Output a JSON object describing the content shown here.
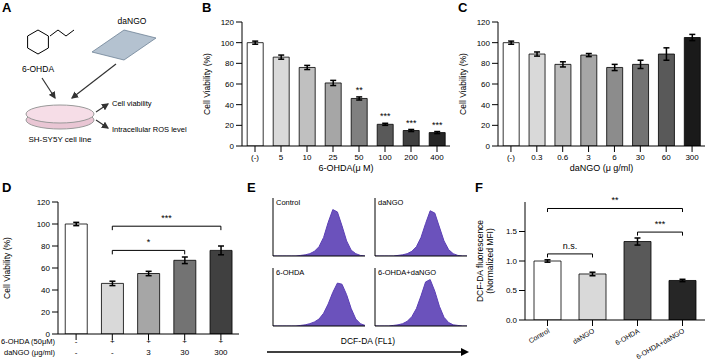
{
  "diagram": {
    "panel": "A",
    "inputs": [
      "6-OHDA",
      "daNGO"
    ],
    "cells": "SH-SY5Y cell line",
    "outputs": [
      "Cell viability",
      "Intracellular ROS level"
    ]
  },
  "chart_data": [
    {
      "panel": "B",
      "type": "bar",
      "ylabel": "Cell Viability (%)",
      "xlabel": "6-OHDA(μ M)",
      "categories": [
        "(-)",
        "5",
        "10",
        "25",
        "50",
        "100",
        "200",
        "400"
      ],
      "values": [
        100,
        86,
        76,
        61,
        46,
        21,
        15,
        13
      ],
      "errors": [
        1.5,
        2,
        2,
        2.5,
        1.5,
        1,
        1,
        1
      ],
      "colors": [
        "#ffffff",
        "#d9d9d9",
        "#c0c0c0",
        "#a6a6a6",
        "#808080",
        "#595959",
        "#404040",
        "#262626"
      ],
      "ylim": [
        0,
        120
      ],
      "yticks": [
        0,
        20,
        40,
        60,
        80,
        100,
        120
      ],
      "annotations": [
        {
          "category": "50",
          "label": "**"
        },
        {
          "category": "100",
          "label": "***"
        },
        {
          "category": "200",
          "label": "***"
        },
        {
          "category": "400",
          "label": "***"
        }
      ]
    },
    {
      "panel": "C",
      "type": "bar",
      "ylabel": "Cell Viability (%)",
      "xlabel": "daNGO (μ g/ml)",
      "categories": [
        "(-)",
        "0.3",
        "0.6",
        "3",
        "6",
        "30",
        "60",
        "300"
      ],
      "values": [
        100,
        89,
        79,
        88,
        76,
        79,
        89,
        105
      ],
      "errors": [
        1.5,
        2,
        2.5,
        1.5,
        3,
        4,
        6,
        3
      ],
      "colors": [
        "#ffffff",
        "#d9d9d9",
        "#bdbdbd",
        "#a6a6a6",
        "#8c8c8c",
        "#737373",
        "#595959",
        "#1a1a1a"
      ],
      "ylim": [
        0,
        120
      ],
      "yticks": [
        0,
        20,
        40,
        60,
        80,
        100,
        120
      ]
    },
    {
      "panel": "D",
      "type": "bar",
      "ylabel": "Cell Viability (%)",
      "x_table": [
        {
          "label": "6-OHDA (50μM)",
          "values": [
            "-",
            "+",
            "+",
            "+",
            "+"
          ]
        },
        {
          "label": "daNGO (μg/ml)",
          "values": [
            "-",
            "-",
            "3",
            "30",
            "300"
          ]
        }
      ],
      "values": [
        100,
        46,
        55,
        67,
        76
      ],
      "errors": [
        1.5,
        2,
        2,
        3,
        4
      ],
      "colors": [
        "#ffffff",
        "#d9d9d9",
        "#a6a6a6",
        "#737373",
        "#404040"
      ],
      "ylim": [
        0,
        120
      ],
      "yticks": [
        0,
        20,
        40,
        60,
        80,
        100,
        120
      ],
      "annotations": [
        {
          "from": 1,
          "to": 3,
          "label": "*"
        },
        {
          "from": 1,
          "to": 4,
          "label": "***"
        }
      ]
    },
    {
      "panel": "E",
      "type": "area",
      "xlabel": "DCF-DA (FL1)",
      "tick_labels": false,
      "x": [
        0,
        1,
        2,
        3,
        4,
        5,
        6,
        7,
        8,
        9,
        10,
        11,
        12,
        13,
        14,
        15,
        16,
        17,
        18,
        19,
        20
      ],
      "xlim": [
        0,
        20
      ],
      "ylim": [
        0,
        100
      ],
      "series": [
        {
          "name": "Control",
          "color": "#5b3fb5",
          "values": [
            0,
            0,
            0,
            0,
            0,
            0,
            1,
            2,
            4,
            8,
            16,
            32,
            58,
            80,
            76,
            52,
            26,
            10,
            4,
            1,
            0
          ]
        },
        {
          "name": "daNGO",
          "color": "#5b3fb5",
          "values": [
            0,
            0,
            0,
            0,
            0,
            1,
            2,
            4,
            8,
            16,
            32,
            56,
            78,
            74,
            50,
            26,
            11,
            4,
            1,
            0,
            0
          ]
        },
        {
          "name": "6-OHDA",
          "color": "#5b3fb5",
          "values": [
            0,
            0,
            0,
            0,
            0,
            0,
            1,
            2,
            4,
            7,
            12,
            22,
            38,
            58,
            74,
            72,
            54,
            30,
            12,
            4,
            1
          ]
        },
        {
          "name": "6-OHDA+daNGO",
          "color": "#5b3fb5",
          "values": [
            0,
            0,
            0,
            0,
            1,
            2,
            4,
            8,
            16,
            30,
            52,
            76,
            80,
            60,
            34,
            15,
            6,
            2,
            1,
            0,
            0
          ]
        }
      ]
    },
    {
      "panel": "F",
      "type": "bar",
      "ylabel": "DCF-DA fluorescence\n(Normalized MFI)",
      "categories": [
        "Control",
        "daNGO",
        "6-OHDA",
        "6-OHDA+daNGO"
      ],
      "values": [
        1.0,
        0.78,
        1.33,
        0.67
      ],
      "errors": [
        0.02,
        0.03,
        0.06,
        0.02
      ],
      "colors": [
        "#ffffff",
        "#d9d9d9",
        "#595959",
        "#262626"
      ],
      "ylim": [
        0,
        2
      ],
      "yticks": [
        {
          "value": 0,
          "label": "0.0"
        },
        0.5,
        {
          "value": 1,
          "label": "1.0"
        },
        1.5
      ],
      "annotations": [
        {
          "from": 0,
          "to": 1,
          "label": "n.s."
        },
        {
          "from": 2,
          "to": 3,
          "label": "***"
        },
        {
          "from": 0,
          "to": 3,
          "label": "**"
        }
      ]
    }
  ]
}
